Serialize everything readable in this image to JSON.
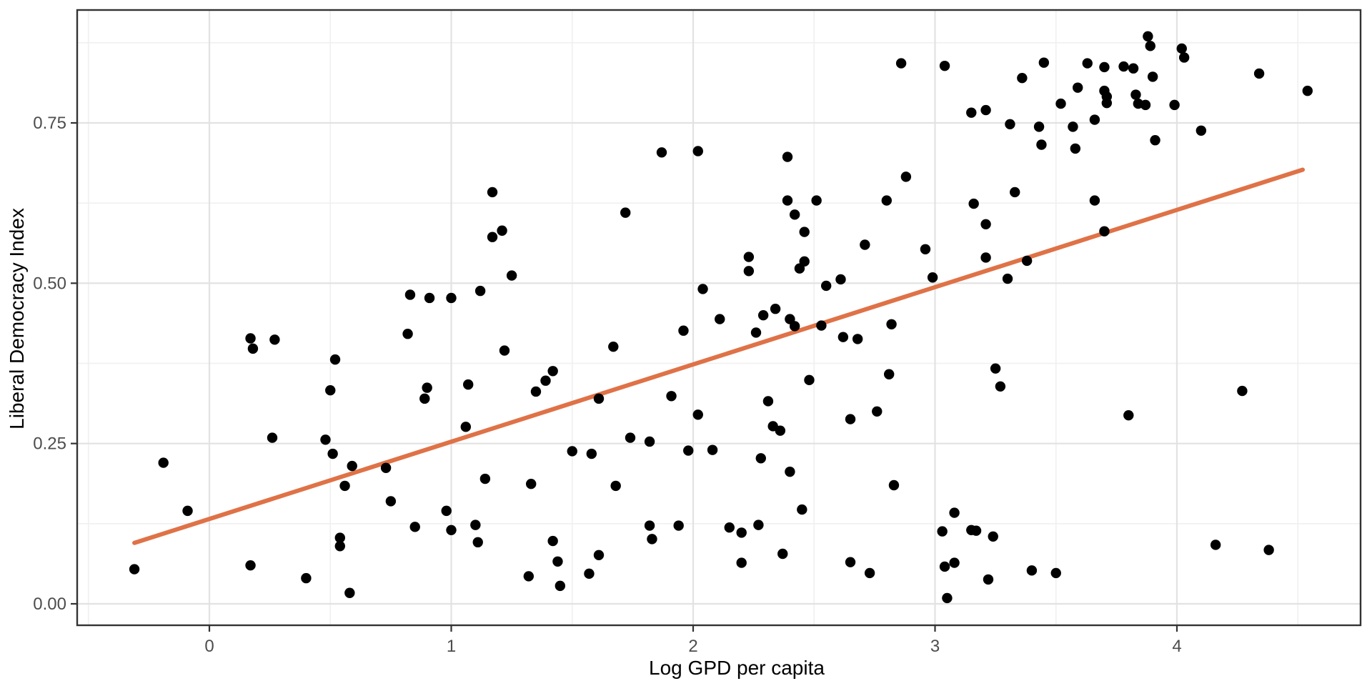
{
  "chart_data": {
    "type": "scatter",
    "title": "",
    "xlabel": "Log GPD per capita",
    "ylabel": "Liberal Democracy Index",
    "xlim": [
      -0.55,
      4.76
    ],
    "ylim": [
      -0.033,
      0.926
    ],
    "grid": true,
    "legend": false,
    "x_ticks": {
      "values": [
        0,
        1,
        2,
        3,
        4
      ],
      "labels": [
        "0",
        "1",
        "2",
        "3",
        "4"
      ]
    },
    "y_ticks": {
      "values": [
        0.0,
        0.25,
        0.5,
        0.75
      ],
      "labels": [
        "0.00",
        "0.25",
        "0.50",
        "0.75"
      ]
    },
    "x_minor": [
      -0.5,
      0.5,
      1.5,
      2.5,
      3.5,
      4.5
    ],
    "y_minor": [
      0.125,
      0.375,
      0.625,
      0.875
    ],
    "colors": {
      "point": "#000000",
      "trend_line": "#DF7247",
      "grid_major": "#E2E2E2",
      "grid_minor": "#F0F0F0",
      "panel_border": "#333333",
      "tick_label": "#4D4D4D",
      "panel_bg": "#FFFFFF"
    },
    "trend_line": {
      "x1": -0.31,
      "y1": 0.095,
      "x2": 4.52,
      "y2": 0.677
    },
    "points": [
      [
        -0.31,
        0.054
      ],
      [
        -0.19,
        0.22
      ],
      [
        -0.09,
        0.145
      ],
      [
        0.17,
        0.06
      ],
      [
        0.26,
        0.259
      ],
      [
        0.17,
        0.414
      ],
      [
        0.18,
        0.398
      ],
      [
        0.27,
        0.412
      ],
      [
        0.52,
        0.381
      ],
      [
        0.5,
        0.333
      ],
      [
        1.17,
        0.642
      ],
      [
        1.17,
        0.572
      ],
      [
        1.21,
        0.582
      ],
      [
        1.25,
        0.512
      ],
      [
        1.12,
        0.488
      ],
      [
        0.83,
        0.482
      ],
      [
        0.91,
        0.477
      ],
      [
        1.0,
        0.477
      ],
      [
        0.82,
        0.421
      ],
      [
        1.22,
        0.395
      ],
      [
        1.67,
        0.401
      ],
      [
        1.42,
        0.363
      ],
      [
        1.39,
        0.348
      ],
      [
        1.35,
        0.331
      ],
      [
        0.9,
        0.337
      ],
      [
        0.89,
        0.32
      ],
      [
        1.07,
        0.342
      ],
      [
        1.61,
        0.32
      ],
      [
        1.72,
        0.61
      ],
      [
        1.87,
        0.704
      ],
      [
        2.02,
        0.706
      ],
      [
        2.39,
        0.697
      ],
      [
        2.86,
        0.843
      ],
      [
        2.39,
        0.629
      ],
      [
        2.51,
        0.629
      ],
      [
        2.8,
        0.629
      ],
      [
        2.88,
        0.666
      ],
      [
        2.42,
        0.607
      ],
      [
        2.46,
        0.58
      ],
      [
        2.71,
        0.56
      ],
      [
        2.23,
        0.541
      ],
      [
        2.23,
        0.519
      ],
      [
        2.44,
        0.523
      ],
      [
        2.46,
        0.534
      ],
      [
        2.61,
        0.506
      ],
      [
        2.55,
        0.496
      ],
      [
        2.04,
        0.491
      ],
      [
        2.34,
        0.46
      ],
      [
        2.29,
        0.45
      ],
      [
        2.4,
        0.444
      ],
      [
        2.42,
        0.433
      ],
      [
        2.11,
        0.444
      ],
      [
        1.96,
        0.426
      ],
      [
        2.26,
        0.423
      ],
      [
        2.53,
        0.434
      ],
      [
        2.62,
        0.416
      ],
      [
        2.68,
        0.413
      ],
      [
        2.82,
        0.436
      ],
      [
        2.81,
        0.358
      ],
      [
        2.48,
        0.349
      ],
      [
        1.91,
        0.324
      ],
      [
        2.02,
        0.295
      ],
      [
        2.31,
        0.316
      ],
      [
        2.65,
        0.288
      ],
      [
        2.76,
        0.3
      ],
      [
        2.96,
        0.553
      ],
      [
        2.99,
        0.509
      ],
      [
        3.21,
        0.592
      ],
      [
        3.21,
        0.54
      ],
      [
        3.3,
        0.507
      ],
      [
        3.38,
        0.535
      ],
      [
        3.7,
        0.581
      ],
      [
        3.25,
        0.367
      ],
      [
        3.27,
        0.339
      ],
      [
        3.8,
        0.294
      ],
      [
        4.27,
        0.332
      ],
      [
        3.04,
        0.839
      ],
      [
        3.88,
        0.885
      ],
      [
        3.89,
        0.87
      ],
      [
        4.02,
        0.866
      ],
      [
        4.03,
        0.852
      ],
      [
        3.45,
        0.844
      ],
      [
        3.63,
        0.843
      ],
      [
        3.7,
        0.837
      ],
      [
        3.78,
        0.838
      ],
      [
        3.82,
        0.835
      ],
      [
        3.36,
        0.82
      ],
      [
        3.9,
        0.822
      ],
      [
        3.59,
        0.805
      ],
      [
        3.7,
        0.8
      ],
      [
        3.71,
        0.791
      ],
      [
        3.71,
        0.781
      ],
      [
        3.83,
        0.794
      ],
      [
        3.84,
        0.78
      ],
      [
        3.87,
        0.778
      ],
      [
        3.99,
        0.778
      ],
      [
        3.52,
        0.78
      ],
      [
        3.15,
        0.766
      ],
      [
        3.21,
        0.77
      ],
      [
        3.31,
        0.748
      ],
      [
        3.43,
        0.744
      ],
      [
        3.57,
        0.744
      ],
      [
        3.66,
        0.755
      ],
      [
        3.58,
        0.71
      ],
      [
        3.44,
        0.716
      ],
      [
        3.91,
        0.723
      ],
      [
        4.1,
        0.738
      ],
      [
        3.33,
        0.642
      ],
      [
        3.16,
        0.624
      ],
      [
        3.66,
        0.629
      ],
      [
        4.34,
        0.827
      ],
      [
        4.54,
        0.8
      ],
      [
        0.48,
        0.256
      ],
      [
        0.51,
        0.234
      ],
      [
        0.59,
        0.215
      ],
      [
        0.56,
        0.184
      ],
      [
        0.73,
        0.212
      ],
      [
        0.75,
        0.16
      ],
      [
        0.98,
        0.145
      ],
      [
        0.85,
        0.12
      ],
      [
        1.0,
        0.115
      ],
      [
        1.1,
        0.123
      ],
      [
        1.11,
        0.096
      ],
      [
        1.14,
        0.195
      ],
      [
        1.33,
        0.187
      ],
      [
        0.54,
        0.103
      ],
      [
        0.54,
        0.09
      ],
      [
        0.4,
        0.04
      ],
      [
        0.58,
        0.017
      ],
      [
        1.32,
        0.043
      ],
      [
        1.42,
        0.098
      ],
      [
        1.44,
        0.066
      ],
      [
        1.45,
        0.028
      ],
      [
        1.06,
        0.276
      ],
      [
        1.5,
        0.238
      ],
      [
        1.58,
        0.234
      ],
      [
        1.74,
        0.259
      ],
      [
        1.82,
        0.253
      ],
      [
        1.98,
        0.239
      ],
      [
        2.08,
        0.24
      ],
      [
        2.28,
        0.227
      ],
      [
        2.4,
        0.206
      ],
      [
        1.68,
        0.184
      ],
      [
        2.45,
        0.147
      ],
      [
        1.82,
        0.122
      ],
      [
        1.83,
        0.101
      ],
      [
        1.94,
        0.122
      ],
      [
        2.15,
        0.119
      ],
      [
        2.2,
        0.111
      ],
      [
        2.27,
        0.123
      ],
      [
        1.61,
        0.076
      ],
      [
        1.57,
        0.047
      ],
      [
        2.2,
        0.064
      ],
      [
        2.37,
        0.078
      ],
      [
        2.65,
        0.065
      ],
      [
        2.33,
        0.277
      ],
      [
        2.36,
        0.27
      ],
      [
        2.83,
        0.185
      ],
      [
        3.08,
        0.142
      ],
      [
        3.03,
        0.113
      ],
      [
        3.15,
        0.115
      ],
      [
        3.17,
        0.114
      ],
      [
        3.24,
        0.105
      ],
      [
        3.04,
        0.058
      ],
      [
        3.08,
        0.064
      ],
      [
        2.73,
        0.048
      ],
      [
        3.22,
        0.038
      ],
      [
        3.4,
        0.052
      ],
      [
        3.5,
        0.048
      ],
      [
        3.05,
        0.009
      ],
      [
        4.16,
        0.092
      ],
      [
        4.38,
        0.084
      ]
    ]
  }
}
